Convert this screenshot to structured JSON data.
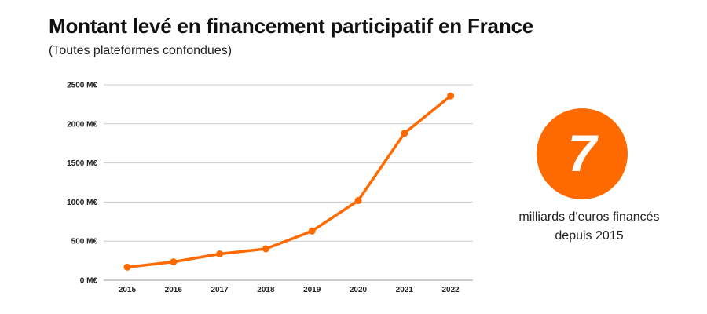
{
  "header": {
    "title": "Montant levé en financement participatif en France",
    "subtitle": "(Toutes plateformes confondues)"
  },
  "stat": {
    "value": "7",
    "caption_line1": "milliards d'euros financés",
    "caption_line2": "depuis 2015"
  },
  "colors": {
    "accent": "#ff6a00",
    "gridline": "#cccccc",
    "text": "#111111"
  },
  "chart_data": {
    "type": "line",
    "title": "Montant levé en financement participatif en France",
    "subtitle": "(Toutes plateformes confondues)",
    "x": [
      "2015",
      "2016",
      "2017",
      "2018",
      "2019",
      "2020",
      "2021",
      "2022"
    ],
    "series": [
      {
        "values": [
          167,
          235,
          336,
          402,
          629,
          1019,
          1880,
          2357
        ]
      }
    ],
    "ylim": [
      0,
      2500
    ],
    "yticks": [
      0,
      500,
      1000,
      1500,
      2000,
      2500
    ],
    "ytick_labels": [
      "0 M€",
      "500 M€",
      "1000 M€",
      "1500 M€",
      "2000 M€",
      "2500 M€"
    ],
    "grid": true,
    "legend": "none"
  }
}
